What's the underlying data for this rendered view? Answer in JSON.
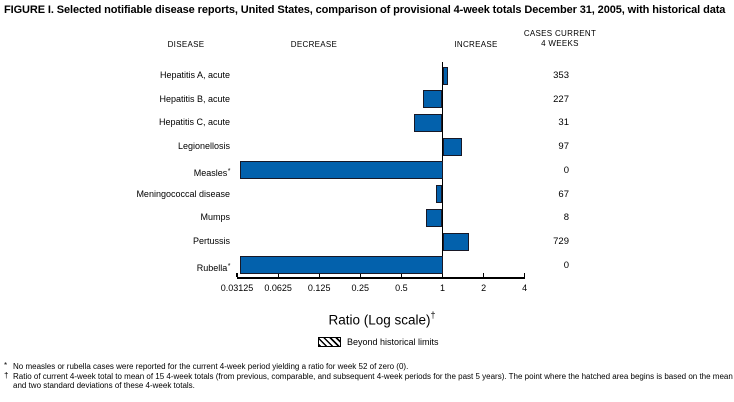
{
  "figure": {
    "title": "FIGURE I. Selected notifiable disease reports, United States, comparison of provisional 4-week totals December 31, 2005, with historical data",
    "columns": {
      "disease": "DISEASE",
      "decrease": "DECREASE",
      "increase": "INCREASE",
      "cases_line1": "CASES CURRENT",
      "cases_line2": "4 WEEKS"
    }
  },
  "chart_data": {
    "type": "bar",
    "orientation": "horizontal",
    "x_scale": "log2",
    "xlabel": "Ratio (Log scale)",
    "xlabel_sup": "†",
    "xlim": [
      0.03125,
      4
    ],
    "x_ticks": [
      0.03125,
      0.0625,
      0.125,
      0.25,
      0.5,
      1,
      2,
      4
    ],
    "x_tick_labels": [
      "0.03125",
      "0.0625",
      "0.125",
      "0.25",
      "0.5",
      "1",
      "2",
      "4"
    ],
    "baseline_ratio": 1,
    "bar_color": "#0361AC",
    "bar_border_color": "#181826",
    "rows": [
      {
        "disease": "Hepatitis A, acute",
        "marker": "",
        "ratio": 1.1,
        "cases": "353",
        "clipped": false,
        "beyond_limits": false
      },
      {
        "disease": "Hepatitis B, acute",
        "marker": "",
        "ratio": 0.72,
        "cases": "227",
        "clipped": false,
        "beyond_limits": false
      },
      {
        "disease": "Hepatitis C, acute",
        "marker": "",
        "ratio": 0.62,
        "cases": "31",
        "clipped": false,
        "beyond_limits": false
      },
      {
        "disease": "Legionellosis",
        "marker": "",
        "ratio": 1.38,
        "cases": "97",
        "clipped": false,
        "beyond_limits": false
      },
      {
        "disease": "Measles",
        "marker": "*",
        "ratio": 0,
        "cases": "0",
        "clipped": true,
        "beyond_limits": false
      },
      {
        "disease": "Meningococcal disease",
        "marker": "",
        "ratio": 0.89,
        "cases": "67",
        "clipped": false,
        "beyond_limits": false
      },
      {
        "disease": "Mumps",
        "marker": "",
        "ratio": 0.76,
        "cases": "8",
        "clipped": false,
        "beyond_limits": false
      },
      {
        "disease": "Pertussis",
        "marker": "",
        "ratio": 1.57,
        "cases": "729",
        "clipped": false,
        "beyond_limits": false
      },
      {
        "disease": "Rubella",
        "marker": "*",
        "ratio": 0,
        "cases": "0",
        "clipped": true,
        "beyond_limits": false
      }
    ],
    "legend": {
      "label": "Beyond historical limits",
      "swatch": "hatched"
    }
  },
  "footnotes": [
    {
      "marker": "*",
      "text": "No measles or rubella cases were reported for the current 4-week period yielding a ratio for week 52 of zero (0)."
    },
    {
      "marker": "†",
      "text": "Ratio of current 4-week total to mean of 15 4-week totals (from previous, comparable, and subsequent 4-week periods for the past 5 years). The point where the hatched area begins is based on the mean and two standard deviations of these 4-week totals."
    }
  ]
}
